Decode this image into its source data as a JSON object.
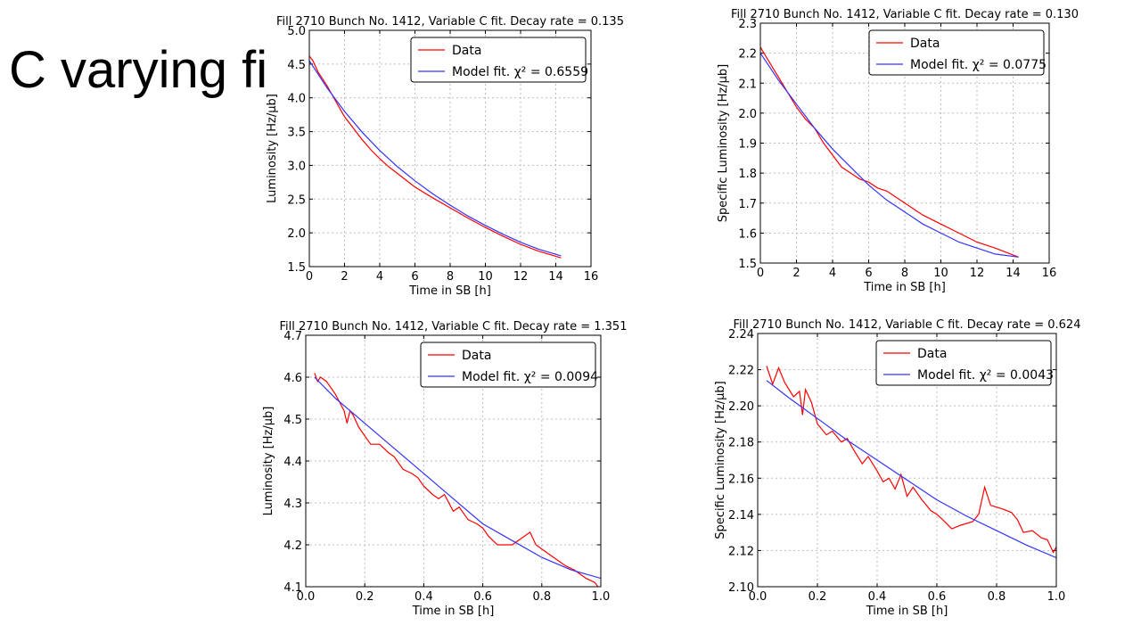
{
  "slide": {
    "title": "C varying fi"
  },
  "chart_data": [
    {
      "type": "line",
      "title": "Fill 2710 Bunch No. 1412, Variable C fit. Decay rate = 0.135",
      "xlabel": "Time in SB [h]",
      "ylabel": "Luminosity [Hz/μb]",
      "xlim": [
        0,
        16
      ],
      "ylim": [
        1.5,
        5.0
      ],
      "xticks": [
        "0",
        "2",
        "4",
        "6",
        "8",
        "10",
        "12",
        "14",
        "16"
      ],
      "yticks": [
        "1.5",
        "2.0",
        "2.5",
        "3.0",
        "3.5",
        "4.0",
        "4.5",
        "5.0"
      ],
      "grid": true,
      "legend_position": "top-right",
      "series": [
        {
          "name": "Data",
          "color": "#ff0000",
          "x": [
            0,
            0.2,
            0.5,
            1,
            1.5,
            2,
            2.5,
            3,
            3.5,
            4,
            4.5,
            5,
            5.5,
            6,
            7,
            8,
            9,
            10,
            11,
            12,
            13,
            14.3
          ],
          "y": [
            4.62,
            4.55,
            4.38,
            4.18,
            3.95,
            3.72,
            3.55,
            3.38,
            3.23,
            3.1,
            2.98,
            2.88,
            2.78,
            2.68,
            2.52,
            2.37,
            2.22,
            2.08,
            1.95,
            1.83,
            1.73,
            1.63
          ]
        },
        {
          "name": "Model fit. χ² = 0.6559",
          "color": "#3333ff",
          "x": [
            0,
            1,
            2,
            3,
            4,
            5,
            6,
            7,
            8,
            9,
            10,
            11,
            12,
            13,
            14.3
          ],
          "y": [
            4.55,
            4.15,
            3.8,
            3.49,
            3.22,
            2.98,
            2.77,
            2.58,
            2.41,
            2.25,
            2.11,
            1.98,
            1.86,
            1.76,
            1.66
          ]
        }
      ]
    },
    {
      "type": "line",
      "title": "Fill 2710 Bunch No. 1412, Variable C fit. Decay rate = 0.130",
      "xlabel": "Time in SB [h]",
      "ylabel": "Specific Luminosity [Hz/μb]",
      "xlim": [
        0,
        16
      ],
      "ylim": [
        1.5,
        2.3
      ],
      "xticks": [
        "0",
        "2",
        "4",
        "6",
        "8",
        "10",
        "12",
        "14",
        "16"
      ],
      "yticks": [
        "1.5",
        "1.6",
        "1.7",
        "1.8",
        "1.9",
        "2.0",
        "2.1",
        "2.2",
        "2.3"
      ],
      "grid": true,
      "legend_position": "top-right",
      "series": [
        {
          "name": "Data",
          "color": "#ff0000",
          "x": [
            0,
            0.2,
            0.5,
            0.8,
            1,
            1.5,
            2,
            2.5,
            3,
            3.5,
            4,
            4.5,
            5,
            5.5,
            6,
            6.5,
            7,
            7.5,
            8,
            8.5,
            9,
            10,
            11,
            12,
            13,
            14.3
          ],
          "y": [
            2.22,
            2.2,
            2.17,
            2.14,
            2.12,
            2.07,
            2.02,
            1.98,
            1.95,
            1.9,
            1.86,
            1.82,
            1.8,
            1.78,
            1.77,
            1.75,
            1.74,
            1.72,
            1.7,
            1.68,
            1.66,
            1.63,
            1.6,
            1.57,
            1.55,
            1.52
          ]
        },
        {
          "name": "Model fit. χ² = 0.0775",
          "color": "#3333ff",
          "x": [
            0,
            1,
            2,
            3,
            4,
            5,
            6,
            7,
            8,
            9,
            10,
            11,
            12,
            13,
            14.3
          ],
          "y": [
            2.2,
            2.11,
            2.03,
            1.95,
            1.88,
            1.82,
            1.76,
            1.71,
            1.67,
            1.63,
            1.6,
            1.57,
            1.55,
            1.53,
            1.52
          ]
        }
      ]
    },
    {
      "type": "line",
      "title": "Fill 2710 Bunch No. 1412, Variable C fit. Decay rate = 1.351",
      "xlabel": "Time in SB [h]",
      "ylabel": "Luminosity [Hz/μb]",
      "xlim": [
        0.0,
        1.0
      ],
      "ylim": [
        4.1,
        4.7
      ],
      "xticks": [
        "0.0",
        "0.2",
        "0.4",
        "0.6",
        "0.8",
        "1.0"
      ],
      "yticks": [
        "4.1",
        "4.2",
        "4.3",
        "4.4",
        "4.5",
        "4.6",
        "4.7"
      ],
      "grid": true,
      "legend_position": "top-right",
      "series": [
        {
          "name": "Data",
          "color": "#ff0000",
          "x": [
            0.03,
            0.04,
            0.05,
            0.07,
            0.1,
            0.13,
            0.14,
            0.15,
            0.16,
            0.18,
            0.2,
            0.22,
            0.25,
            0.28,
            0.3,
            0.33,
            0.36,
            0.38,
            0.4,
            0.43,
            0.45,
            0.47,
            0.5,
            0.52,
            0.55,
            0.58,
            0.6,
            0.62,
            0.65,
            0.7,
            0.74,
            0.76,
            0.78,
            0.8,
            0.84,
            0.88,
            0.91,
            0.95,
            0.98,
            0.99
          ],
          "y": [
            4.61,
            4.59,
            4.6,
            4.59,
            4.56,
            4.52,
            4.49,
            4.52,
            4.51,
            4.48,
            4.46,
            4.44,
            4.44,
            4.42,
            4.41,
            4.38,
            4.37,
            4.36,
            4.34,
            4.32,
            4.31,
            4.32,
            4.28,
            4.29,
            4.26,
            4.25,
            4.24,
            4.22,
            4.2,
            4.2,
            4.22,
            4.23,
            4.2,
            4.19,
            4.17,
            4.15,
            4.14,
            4.12,
            4.11,
            4.1
          ]
        },
        {
          "name": "Model fit. χ² = 0.0094",
          "color": "#3333ff",
          "x": [
            0.03,
            0.1,
            0.2,
            0.3,
            0.4,
            0.5,
            0.6,
            0.7,
            0.8,
            0.9,
            1.0
          ],
          "y": [
            4.6,
            4.55,
            4.49,
            4.43,
            4.37,
            4.31,
            4.25,
            4.21,
            4.17,
            4.14,
            4.12
          ]
        }
      ]
    },
    {
      "type": "line",
      "title": "Fill 2710 Bunch No. 1412, Variable C fit. Decay rate = 0.624",
      "xlabel": "Time in SB [h]",
      "ylabel": "Specific Luminosity [Hz/μb]",
      "xlim": [
        0.0,
        1.0
      ],
      "ylim": [
        2.1,
        2.24
      ],
      "xticks": [
        "0.0",
        "0.2",
        "0.4",
        "0.6",
        "0.8",
        "1.0"
      ],
      "yticks": [
        "2.10",
        "2.12",
        "2.14",
        "2.16",
        "2.18",
        "2.20",
        "2.22",
        "2.24"
      ],
      "grid": true,
      "legend_position": "top-right",
      "series": [
        {
          "name": "Data",
          "color": "#ff0000",
          "x": [
            0.03,
            0.05,
            0.07,
            0.09,
            0.12,
            0.14,
            0.15,
            0.16,
            0.18,
            0.2,
            0.23,
            0.25,
            0.28,
            0.3,
            0.32,
            0.35,
            0.37,
            0.4,
            0.42,
            0.44,
            0.46,
            0.48,
            0.5,
            0.52,
            0.55,
            0.58,
            0.6,
            0.62,
            0.65,
            0.68,
            0.72,
            0.74,
            0.76,
            0.78,
            0.82,
            0.85,
            0.87,
            0.89,
            0.92,
            0.95,
            0.97,
            0.99,
            1.0
          ],
          "y": [
            2.222,
            2.212,
            2.221,
            2.213,
            2.205,
            2.208,
            2.195,
            2.209,
            2.202,
            2.19,
            2.184,
            2.186,
            2.18,
            2.182,
            2.176,
            2.168,
            2.172,
            2.164,
            2.158,
            2.16,
            2.154,
            2.162,
            2.15,
            2.155,
            2.148,
            2.142,
            2.14,
            2.137,
            2.132,
            2.134,
            2.136,
            2.14,
            2.155,
            2.145,
            2.143,
            2.141,
            2.137,
            2.13,
            2.131,
            2.127,
            2.126,
            2.119,
            2.122
          ]
        },
        {
          "name": "Model fit. χ² = 0.0043",
          "color": "#3333ff",
          "x": [
            0.03,
            0.1,
            0.2,
            0.3,
            0.4,
            0.5,
            0.6,
            0.7,
            0.8,
            0.9,
            1.0
          ],
          "y": [
            2.214,
            2.205,
            2.193,
            2.181,
            2.17,
            2.159,
            2.148,
            2.139,
            2.131,
            2.123,
            2.116
          ]
        }
      ]
    }
  ]
}
